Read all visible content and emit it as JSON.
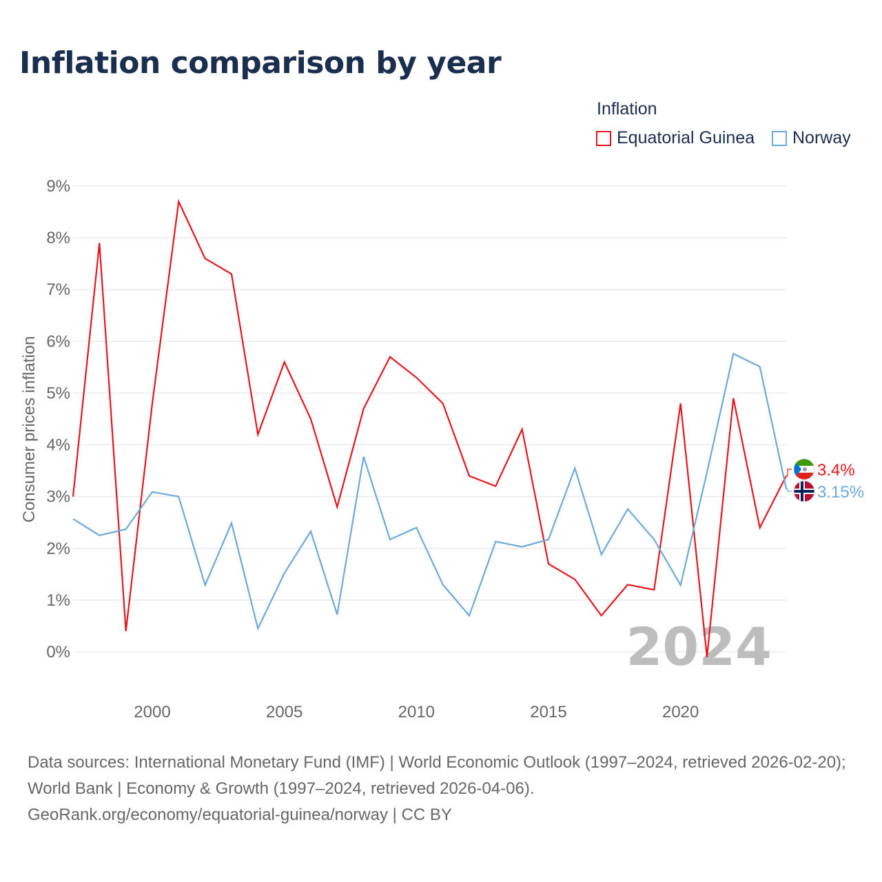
{
  "title": "Inflation comparison by year",
  "legend": {
    "title": "Inflation",
    "items": [
      {
        "label": "Equatorial Guinea",
        "color": "#e8141b"
      },
      {
        "label": "Norway",
        "color": "#6aa8e0"
      }
    ]
  },
  "chart_data": {
    "type": "line",
    "title": "Inflation comparison by year",
    "xlabel": "",
    "ylabel": "Consumer prices inflation",
    "xlim": [
      1997,
      2024
    ],
    "ylim": [
      0,
      9
    ],
    "yticks": [
      "0%",
      "1%",
      "2%",
      "3%",
      "4%",
      "5%",
      "6%",
      "7%",
      "8%",
      "9%"
    ],
    "xticks": [
      "2000",
      "2005",
      "2010",
      "2015",
      "2020"
    ],
    "grid": true,
    "x": [
      1997,
      1998,
      1999,
      2000,
      2001,
      2002,
      2003,
      2004,
      2005,
      2006,
      2007,
      2008,
      2009,
      2010,
      2011,
      2012,
      2013,
      2014,
      2015,
      2016,
      2017,
      2018,
      2019,
      2020,
      2021,
      2022,
      2023,
      2024
    ],
    "series": [
      {
        "name": "Equatorial Guinea",
        "color": "#e8141b",
        "values": [
          3.0,
          7.9,
          0.4,
          4.8,
          8.7,
          7.6,
          7.3,
          4.2,
          5.6,
          4.5,
          2.8,
          4.7,
          5.7,
          5.3,
          4.8,
          3.4,
          3.2,
          4.3,
          1.7,
          1.4,
          0.7,
          1.3,
          1.2,
          4.8,
          -0.1,
          4.9,
          2.4,
          3.4
        ],
        "end_label": "3.4%",
        "flag": "equatorial-guinea-flag"
      },
      {
        "name": "Norway",
        "color": "#6aa8e0",
        "values": [
          2.57,
          2.25,
          2.37,
          3.09,
          3.0,
          1.29,
          2.49,
          0.45,
          1.52,
          2.33,
          0.72,
          3.77,
          2.17,
          2.4,
          1.3,
          0.7,
          2.13,
          2.03,
          2.17,
          3.55,
          1.88,
          2.76,
          2.17,
          1.29,
          3.47,
          5.76,
          5.51,
          3.15
        ],
        "end_label": "3.15%",
        "flag": "norway-flag"
      }
    ],
    "annotation": "2024"
  },
  "footer": {
    "line1": "Data sources: International Monetary Fund (IMF) | World Economic Outlook (1997–2024, retrieved 2026-02-20); World Bank | Economy & Growth (1997–2024, retrieved 2026-04-06).",
    "line2": "GeoRank.org/economy/equatorial-guinea/norway | CC BY"
  }
}
